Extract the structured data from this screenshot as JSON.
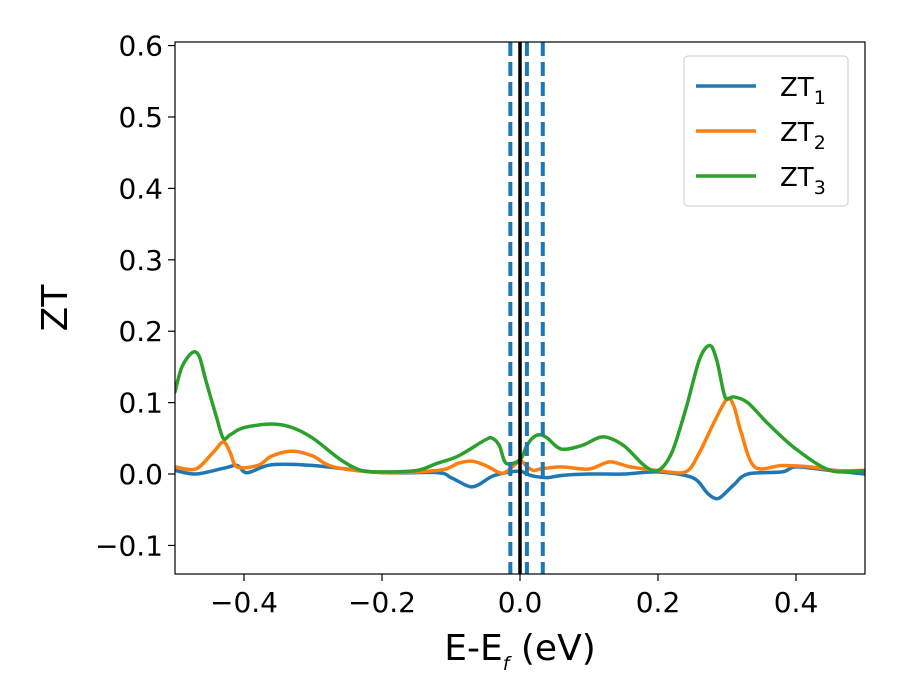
{
  "chart_data": {
    "type": "line",
    "title": "",
    "xlabel": "E-E",
    "xlabel_sub": "f",
    "xlabel_unit": " (eV)",
    "ylabel": "ZT",
    "xlim": [
      -0.5,
      0.5
    ],
    "ylim": [
      -0.14,
      0.605
    ],
    "xticks": [
      -0.4,
      -0.2,
      0.0,
      0.2,
      0.4
    ],
    "xtick_labels": [
      "−0.4",
      "−0.2",
      "0.0",
      "0.2",
      "0.4"
    ],
    "yticks": [
      -0.1,
      0.0,
      0.1,
      0.2,
      0.3,
      0.4,
      0.5,
      0.6
    ],
    "ytick_labels": [
      "−0.1",
      "0.0",
      "0.1",
      "0.2",
      "0.3",
      "0.4",
      "0.5",
      "0.6"
    ],
    "grid": false,
    "legend_position": "top-right",
    "series": [
      {
        "name": "ZT",
        "name_sub": "1",
        "color": "#1f77b4",
        "x": [
          -0.5,
          -0.47,
          -0.43,
          -0.41,
          -0.4,
          -0.39,
          -0.36,
          -0.3,
          -0.2,
          -0.12,
          -0.1,
          -0.08,
          -0.07,
          -0.06,
          -0.04,
          -0.02,
          0.0,
          0.01,
          0.02,
          0.04,
          0.06,
          0.1,
          0.15,
          0.2,
          0.25,
          0.27,
          0.28,
          0.29,
          0.31,
          0.33,
          0.38,
          0.4,
          0.45,
          0.5
        ],
        "y": [
          0.005,
          0.0,
          0.008,
          0.012,
          0.003,
          0.003,
          0.013,
          0.012,
          0.002,
          0.002,
          -0.005,
          -0.015,
          -0.018,
          -0.015,
          -0.003,
          0.002,
          0.004,
          0.0,
          -0.003,
          -0.005,
          -0.002,
          0.0,
          0.0,
          0.003,
          -0.005,
          -0.025,
          -0.033,
          -0.033,
          -0.015,
          0.0,
          0.003,
          0.01,
          0.005,
          0.0
        ]
      },
      {
        "name": "ZT",
        "name_sub": "2",
        "color": "#ff7f0e",
        "x": [
          -0.5,
          -0.47,
          -0.445,
          -0.43,
          -0.42,
          -0.41,
          -0.38,
          -0.36,
          -0.33,
          -0.3,
          -0.27,
          -0.2,
          -0.12,
          -0.1,
          -0.09,
          -0.07,
          -0.05,
          -0.03,
          -0.02,
          0.0,
          0.01,
          0.02,
          0.03,
          0.06,
          0.1,
          0.13,
          0.16,
          0.2,
          0.24,
          0.26,
          0.28,
          0.3,
          0.31,
          0.32,
          0.34,
          0.38,
          0.42,
          0.46,
          0.5
        ],
        "y": [
          0.01,
          0.007,
          0.03,
          0.045,
          0.03,
          0.01,
          0.012,
          0.025,
          0.032,
          0.025,
          0.01,
          0.002,
          0.005,
          0.01,
          0.015,
          0.018,
          0.012,
          0.002,
          0.003,
          0.018,
          0.01,
          0.005,
          0.007,
          0.01,
          0.007,
          0.017,
          0.01,
          0.005,
          0.003,
          0.03,
          0.07,
          0.105,
          0.095,
          0.06,
          0.01,
          0.012,
          0.01,
          0.005,
          0.005
        ]
      },
      {
        "name": "ZT",
        "name_sub": "3",
        "color": "#2ca02c",
        "x": [
          -0.5,
          -0.49,
          -0.475,
          -0.465,
          -0.455,
          -0.44,
          -0.43,
          -0.42,
          -0.4,
          -0.36,
          -0.33,
          -0.3,
          -0.26,
          -0.23,
          -0.2,
          -0.15,
          -0.12,
          -0.09,
          -0.05,
          -0.04,
          -0.03,
          -0.02,
          0.0,
          0.01,
          0.02,
          0.03,
          0.04,
          0.06,
          0.09,
          0.12,
          0.15,
          0.18,
          0.2,
          0.22,
          0.24,
          0.26,
          0.275,
          0.285,
          0.295,
          0.3,
          0.31,
          0.33,
          0.36,
          0.4,
          0.45,
          0.5
        ],
        "y": [
          0.115,
          0.15,
          0.17,
          0.165,
          0.13,
          0.08,
          0.05,
          0.055,
          0.065,
          0.07,
          0.065,
          0.05,
          0.02,
          0.005,
          0.003,
          0.005,
          0.015,
          0.025,
          0.048,
          0.05,
          0.04,
          0.015,
          0.02,
          0.04,
          0.052,
          0.055,
          0.05,
          0.035,
          0.04,
          0.052,
          0.04,
          0.012,
          0.005,
          0.03,
          0.09,
          0.16,
          0.18,
          0.16,
          0.115,
          0.105,
          0.108,
          0.1,
          0.07,
          0.035,
          0.005,
          0.005
        ]
      }
    ],
    "vlines": [
      {
        "x": -0.014,
        "style": "dashed",
        "color": "#1f77b4"
      },
      {
        "x": 0.0,
        "style": "solid",
        "color": "#000000"
      },
      {
        "x": 0.01,
        "style": "dashed",
        "color": "#1f77b4"
      },
      {
        "x": 0.033,
        "style": "dashed",
        "color": "#1f77b4"
      }
    ]
  }
}
